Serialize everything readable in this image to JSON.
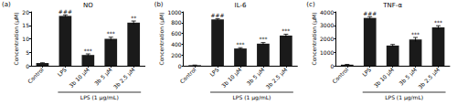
{
  "chart_data": [
    {
      "type": "bar",
      "panel_label": "(a)",
      "title": "NO",
      "y_label": "Concentration (μM)",
      "categories": [
        "Control",
        "LPS",
        "3b 10 μM",
        "3b 5 μM",
        "3b 2.5 μM"
      ],
      "values": [
        1.0,
        18.5,
        4.0,
        10.0,
        16.0
      ],
      "errors": [
        0.1,
        0.4,
        0.4,
        0.6,
        0.6
      ],
      "annotations": [
        null,
        "###",
        "***",
        "***",
        "**"
      ],
      "group_label": "LPS (1 μg/mL)",
      "group_categories": [
        "LPS",
        "3b 10 μM",
        "3b 5 μM",
        "3b 2.5 μM"
      ],
      "color": "#1a1a1a",
      "ylim": [
        0,
        20
      ],
      "yticks": [
        0,
        5,
        10,
        15,
        20
      ],
      "grid": false
    },
    {
      "type": "bar",
      "panel_label": "(b)",
      "title": "IL-6",
      "y_label": "Concentration (μM)",
      "categories": [
        "Control",
        "LPS",
        "3b 10 μM",
        "3b 5 μM",
        "3b 2.5 μM"
      ],
      "values": [
        10,
        860,
        320,
        410,
        560
      ],
      "errors": [
        3,
        15,
        15,
        20,
        25
      ],
      "annotations": [
        null,
        "###",
        "***",
        "***",
        "***"
      ],
      "group_label": "LPS (1 μg/mL)",
      "group_categories": [
        "LPS",
        "3b 10 μM",
        "3b 5 μM",
        "3b 2.5 μM"
      ],
      "color": "#1a1a1a",
      "ylim": [
        0,
        1000
      ],
      "yticks": [
        0,
        200,
        400,
        600,
        800,
        1000
      ],
      "grid": false
    },
    {
      "type": "bar",
      "panel_label": "(c)",
      "title": "TNF-α",
      "y_label": "Concentration (μM)",
      "categories": [
        "Control",
        "LPS",
        "3b 10 μM",
        "3b 5 μM",
        "3b 2.5 μM"
      ],
      "values": [
        80,
        3550,
        1500,
        1950,
        2850
      ],
      "errors": [
        20,
        100,
        80,
        150,
        120
      ],
      "annotations": [
        null,
        "###",
        null,
        "***",
        "***"
      ],
      "group_label": "LPS (1 μg/mL)",
      "group_categories": [
        "LPS",
        "3b 10 μM",
        "3b 5 μM",
        "3b 2.5 μM"
      ],
      "color": "#1a1a1a",
      "ylim": [
        0,
        4000
      ],
      "yticks": [
        0,
        1000,
        2000,
        3000,
        4000
      ],
      "grid": false
    }
  ]
}
